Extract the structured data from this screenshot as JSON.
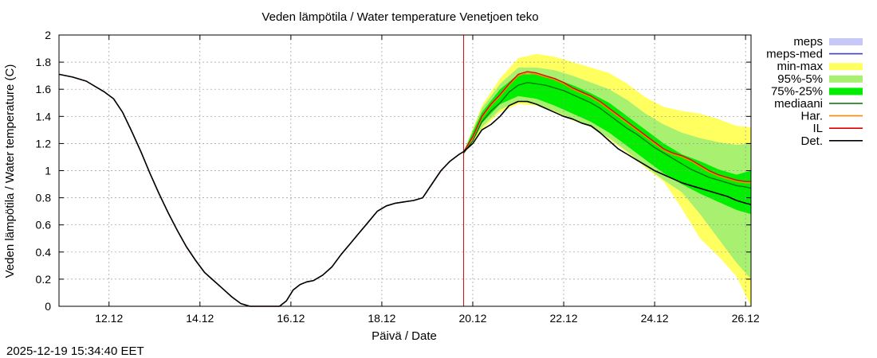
{
  "chart_data": {
    "type": "line",
    "title": "Veden lämpötila / Water temperature Venetjoen teko",
    "xlabel": "Päivä / Date",
    "ylabel": "Veden lämpötila / Water temperature (C)",
    "timestamp": "2025-12-19 15:34:40 EET",
    "xlim": [
      10.9,
      26.12
    ],
    "ylim": [
      0,
      2
    ],
    "x_unit": "day of December 2025",
    "x_ticks": [
      {
        "value": 12,
        "label": "12.12"
      },
      {
        "value": 14,
        "label": "14.12"
      },
      {
        "value": 16,
        "label": "16.12"
      },
      {
        "value": 18,
        "label": "18.12"
      },
      {
        "value": 20,
        "label": "20.12"
      },
      {
        "value": 22,
        "label": "22.12"
      },
      {
        "value": 24,
        "label": "24.12"
      },
      {
        "value": 26,
        "label": "26.12"
      }
    ],
    "y_ticks": [
      {
        "value": 0,
        "label": "0"
      },
      {
        "value": 0.2,
        "label": "0.2"
      },
      {
        "value": 0.4,
        "label": "0.4"
      },
      {
        "value": 0.6,
        "label": "0.6"
      },
      {
        "value": 0.8,
        "label": "0.8"
      },
      {
        "value": 1,
        "label": "1"
      },
      {
        "value": 1.2,
        "label": "1.2"
      },
      {
        "value": 1.4,
        "label": "1.4"
      },
      {
        "value": 1.6,
        "label": "1.6"
      },
      {
        "value": 1.8,
        "label": "1.8"
      },
      {
        "value": 2,
        "label": "2"
      }
    ],
    "forecast_start": 19.8,
    "legend": [
      {
        "label": "meps",
        "kind": "box",
        "color": "#c8c8f8"
      },
      {
        "label": "meps-med",
        "kind": "line",
        "color": "#4040c0"
      },
      {
        "label": "min-max",
        "kind": "box",
        "color": "#ffff60"
      },
      {
        "label": "95%-5%",
        "kind": "box",
        "color": "#a8f070"
      },
      {
        "label": "75%-25%",
        "kind": "box",
        "color": "#00ee00"
      },
      {
        "label": "mediaani",
        "kind": "line",
        "color": "#007000"
      },
      {
        "label": "Har.",
        "kind": "line",
        "color": "#ff8800"
      },
      {
        "label": "IL",
        "kind": "line",
        "color": "#dd0000"
      },
      {
        "label": "Det.",
        "kind": "line",
        "color": "#000000"
      }
    ],
    "colors": {
      "min_max": "#ffff60",
      "p95_5": "#a8f070",
      "p75_25": "#00ee00",
      "median": "#007000",
      "il": "#dd0000",
      "har": "#ff8800",
      "det": "#000000",
      "forecast_line": "#cc0000",
      "grid": "#999999"
    },
    "bands": {
      "x": [
        19.8,
        20.2,
        20.6,
        21.0,
        21.4,
        21.8,
        22.2,
        22.6,
        23.0,
        23.4,
        23.8,
        24.2,
        24.6,
        25.0,
        25.4,
        25.8,
        26.12
      ],
      "min_max": {
        "upper": [
          1.14,
          1.48,
          1.68,
          1.83,
          1.86,
          1.84,
          1.8,
          1.76,
          1.72,
          1.64,
          1.54,
          1.47,
          1.44,
          1.42,
          1.38,
          1.33,
          1.32
        ],
        "lower": [
          1.12,
          1.3,
          1.43,
          1.49,
          1.48,
          1.43,
          1.37,
          1.32,
          1.23,
          1.13,
          1.02,
          0.92,
          0.72,
          0.5,
          0.37,
          0.22,
          0.0
        ]
      },
      "p95_5": {
        "upper": [
          1.14,
          1.46,
          1.64,
          1.76,
          1.76,
          1.74,
          1.7,
          1.65,
          1.6,
          1.52,
          1.42,
          1.34,
          1.28,
          1.24,
          1.21,
          1.19,
          1.2
        ],
        "lower": [
          1.12,
          1.32,
          1.45,
          1.51,
          1.49,
          1.44,
          1.38,
          1.32,
          1.24,
          1.14,
          1.03,
          0.93,
          0.84,
          0.68,
          0.5,
          0.32,
          0.2
        ]
      },
      "p75_25": {
        "upper": [
          1.14,
          1.43,
          1.6,
          1.71,
          1.71,
          1.68,
          1.63,
          1.57,
          1.5,
          1.4,
          1.3,
          1.2,
          1.12,
          1.07,
          1.01,
          0.97,
          1.0
        ],
        "lower": [
          1.12,
          1.35,
          1.49,
          1.55,
          1.53,
          1.48,
          1.42,
          1.36,
          1.28,
          1.18,
          1.08,
          0.98,
          0.9,
          0.83,
          0.77,
          0.71,
          0.68
        ]
      }
    },
    "series": [
      {
        "name": "Det.",
        "color": "#000000",
        "x": [
          10.9,
          11.2,
          11.5,
          11.7,
          11.9,
          12.1,
          12.3,
          12.5,
          12.7,
          12.9,
          13.1,
          13.3,
          13.5,
          13.7,
          13.9,
          14.1,
          14.3,
          14.5,
          14.7,
          14.9,
          15.1,
          15.3,
          15.5,
          15.6,
          15.75,
          15.9,
          16.05,
          16.2,
          16.35,
          16.5,
          16.7,
          16.9,
          17.1,
          17.3,
          17.5,
          17.7,
          17.9,
          18.1,
          18.3,
          18.5,
          18.7,
          18.9,
          19.1,
          19.3,
          19.5,
          19.7,
          19.8,
          20.0,
          20.2,
          20.4,
          20.6,
          20.8,
          21.0,
          21.2,
          21.4,
          21.6,
          21.8,
          22.0,
          22.2,
          22.4,
          22.6,
          22.8,
          23.0,
          23.2,
          23.4,
          23.6,
          23.8,
          24.0,
          24.2,
          24.4,
          24.6,
          24.8,
          25.0,
          25.2,
          25.4,
          25.6,
          25.8,
          26.0,
          26.12
        ],
        "y": [
          1.71,
          1.69,
          1.66,
          1.62,
          1.58,
          1.53,
          1.43,
          1.29,
          1.14,
          0.98,
          0.83,
          0.69,
          0.56,
          0.44,
          0.34,
          0.25,
          0.19,
          0.13,
          0.07,
          0.02,
          0.0,
          0.0,
          0.0,
          0.0,
          0.0,
          0.04,
          0.12,
          0.16,
          0.18,
          0.19,
          0.23,
          0.29,
          0.38,
          0.46,
          0.54,
          0.62,
          0.7,
          0.74,
          0.76,
          0.77,
          0.78,
          0.8,
          0.9,
          1.0,
          1.07,
          1.12,
          1.14,
          1.2,
          1.3,
          1.34,
          1.4,
          1.48,
          1.51,
          1.51,
          1.49,
          1.46,
          1.43,
          1.4,
          1.38,
          1.35,
          1.33,
          1.28,
          1.22,
          1.16,
          1.12,
          1.08,
          1.04,
          1.0,
          0.97,
          0.94,
          0.91,
          0.89,
          0.87,
          0.85,
          0.83,
          0.81,
          0.78,
          0.76,
          0.75
        ]
      },
      {
        "name": "mediaani",
        "color": "#007000",
        "x": [
          19.8,
          20.0,
          20.2,
          20.4,
          20.6,
          20.8,
          21.0,
          21.2,
          21.4,
          21.6,
          21.8,
          22.0,
          22.2,
          22.4,
          22.6,
          22.8,
          23.0,
          23.2,
          23.4,
          23.6,
          23.8,
          24.0,
          24.2,
          24.4,
          24.6,
          24.8,
          25.0,
          25.2,
          25.4,
          25.6,
          25.8,
          26.0,
          26.12
        ],
        "y": [
          1.13,
          1.22,
          1.36,
          1.44,
          1.5,
          1.58,
          1.63,
          1.65,
          1.64,
          1.63,
          1.61,
          1.59,
          1.56,
          1.53,
          1.5,
          1.46,
          1.41,
          1.36,
          1.31,
          1.27,
          1.22,
          1.17,
          1.13,
          1.09,
          1.05,
          1.01,
          0.98,
          0.95,
          0.93,
          0.91,
          0.89,
          0.88,
          0.87
        ]
      },
      {
        "name": "IL",
        "color": "#dd0000",
        "x": [
          10.9,
          11.2,
          11.5,
          11.7,
          11.9,
          12.1,
          12.3,
          12.5,
          12.7,
          12.9,
          13.1,
          13.3,
          13.5,
          13.7,
          13.9,
          14.1,
          14.3,
          14.5,
          14.7,
          14.9,
          15.1,
          15.3,
          15.5,
          15.6,
          15.75,
          15.9,
          16.05,
          16.2,
          16.35,
          16.5,
          16.7,
          16.9,
          17.1,
          17.3,
          17.5,
          17.7,
          17.9,
          18.1,
          18.3,
          18.5,
          18.7,
          18.9,
          19.1,
          19.3,
          19.5,
          19.7,
          19.8,
          20.0,
          20.2,
          20.4,
          20.6,
          20.8,
          21.0,
          21.2,
          21.4,
          21.6,
          21.8,
          22.0,
          22.2,
          22.4,
          22.6,
          22.8,
          23.0,
          23.2,
          23.4,
          23.6,
          23.8,
          24.0,
          24.2,
          24.4,
          24.6,
          24.8,
          25.0,
          25.2,
          25.4,
          25.6,
          25.8,
          26.0,
          26.12
        ],
        "y": [
          1.71,
          1.69,
          1.66,
          1.62,
          1.58,
          1.53,
          1.43,
          1.29,
          1.14,
          0.98,
          0.83,
          0.69,
          0.56,
          0.44,
          0.34,
          0.25,
          0.19,
          0.13,
          0.07,
          0.02,
          0.0,
          0.0,
          0.0,
          0.0,
          0.0,
          0.04,
          0.12,
          0.16,
          0.18,
          0.19,
          0.23,
          0.29,
          0.38,
          0.46,
          0.54,
          0.62,
          0.7,
          0.74,
          0.76,
          0.77,
          0.78,
          0.8,
          0.9,
          1.0,
          1.07,
          1.12,
          1.14,
          1.25,
          1.4,
          1.49,
          1.56,
          1.64,
          1.71,
          1.73,
          1.72,
          1.7,
          1.68,
          1.65,
          1.61,
          1.58,
          1.55,
          1.51,
          1.46,
          1.41,
          1.36,
          1.31,
          1.26,
          1.21,
          1.16,
          1.13,
          1.11,
          1.08,
          1.04,
          1.0,
          0.97,
          0.95,
          0.93,
          0.92,
          0.92
        ]
      },
      {
        "name": "Har.",
        "color": "#ff8800",
        "x": [
          19.8,
          20.0,
          20.2,
          20.4,
          20.6,
          20.8,
          21.0,
          21.2,
          21.4,
          21.6,
          21.8,
          22.0,
          22.2,
          22.4,
          22.6,
          22.8,
          23.0,
          23.2,
          23.4,
          23.6,
          23.8,
          24.0,
          24.2,
          24.4,
          24.6,
          24.8,
          25.0,
          25.2,
          25.4,
          25.6,
          25.8,
          26.0,
          26.12
        ],
        "y": [
          1.14,
          1.24,
          1.39,
          1.48,
          1.55,
          1.63,
          1.7,
          1.72,
          1.71,
          1.69,
          1.67,
          1.64,
          1.6,
          1.57,
          1.54,
          1.5,
          1.45,
          1.4,
          1.35,
          1.3,
          1.25,
          1.2,
          1.15,
          1.12,
          1.1,
          1.07,
          1.03,
          0.99,
          0.96,
          0.94,
          0.92,
          0.91,
          0.91
        ]
      }
    ]
  }
}
